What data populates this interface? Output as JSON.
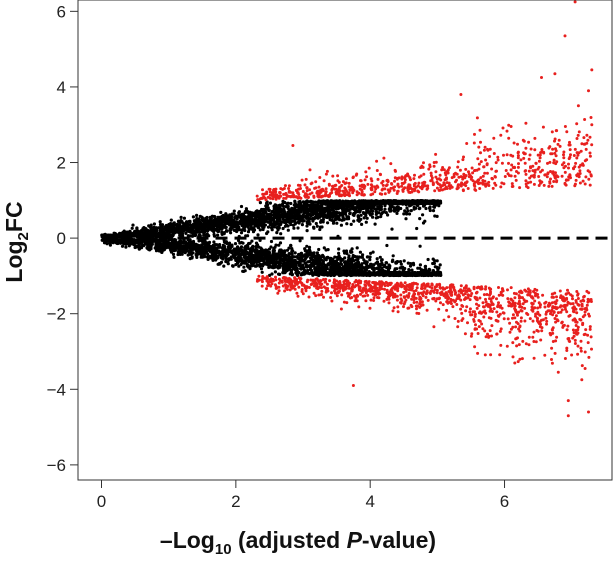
{
  "chart_data": {
    "type": "scatter",
    "title": "",
    "xlabel": {
      "prefix": "–Log",
      "sub": "10",
      "middle": " (adjusted ",
      "italic": "P",
      "suffix": "-value)"
    },
    "ylabel": {
      "prefix": "Log",
      "sub": "2",
      "suffix": "FC"
    },
    "xlim": [
      -0.35,
      7.6
    ],
    "ylim": [
      -6.4,
      6.3
    ],
    "x_ticks": [
      0,
      2,
      4,
      6
    ],
    "x_tick_labels": [
      "0",
      "2",
      "4",
      "6"
    ],
    "y_ticks": [
      -6,
      -4,
      -2,
      0,
      2,
      4,
      6
    ],
    "y_tick_labels": [
      "−6",
      "−4",
      "−2",
      "0",
      "2",
      "4",
      "6"
    ],
    "grid": false,
    "reference_line": {
      "y": 0,
      "style": "dashed",
      "color": "#000000"
    },
    "colors": {
      "not_significant": "#000000",
      "significant": "#e8201e"
    },
    "series": [],
    "notable_points": [
      {
        "x": 7.05,
        "y": 6.25,
        "group": "significant"
      },
      {
        "x": 6.9,
        "y": 5.35,
        "group": "significant"
      },
      {
        "x": 7.3,
        "y": 4.45,
        "group": "significant"
      },
      {
        "x": 6.75,
        "y": 4.35,
        "group": "significant"
      },
      {
        "x": 6.55,
        "y": 4.25,
        "group": "significant"
      },
      {
        "x": 7.25,
        "y": 3.9,
        "group": "significant"
      },
      {
        "x": 5.35,
        "y": 3.8,
        "group": "significant"
      },
      {
        "x": 7.1,
        "y": 3.5,
        "group": "significant"
      },
      {
        "x": 7.3,
        "y": 3.0,
        "group": "significant"
      },
      {
        "x": 2.85,
        "y": 2.45,
        "group": "significant"
      },
      {
        "x": 3.75,
        "y": -3.9,
        "group": "significant"
      },
      {
        "x": 6.95,
        "y": -4.7,
        "group": "significant"
      },
      {
        "x": 7.25,
        "y": -4.6,
        "group": "significant"
      },
      {
        "x": 6.95,
        "y": -4.3,
        "group": "significant"
      },
      {
        "x": 7.15,
        "y": -3.75,
        "group": "significant"
      },
      {
        "x": 6.8,
        "y": -3.55,
        "group": "significant"
      },
      {
        "x": 7.2,
        "y": -3.45,
        "group": "significant"
      },
      {
        "x": 6.6,
        "y": -3.1,
        "group": "significant"
      }
    ]
  }
}
